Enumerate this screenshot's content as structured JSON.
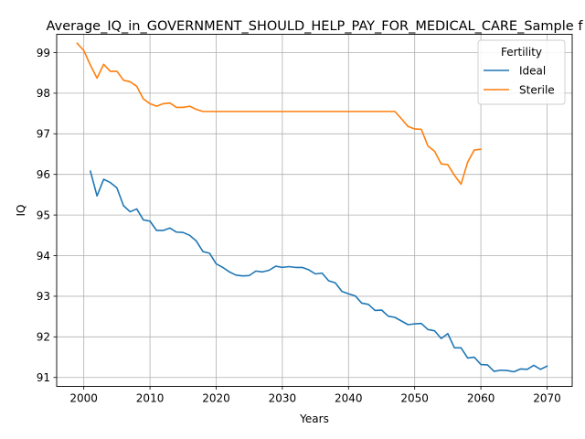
{
  "chart_data": {
    "type": "line",
    "title": "Average_IQ_in_GOVERNMENT_SHOULD_HELP_PAY_FOR_MEDICAL_CARE_Sample f",
    "xlabel": "Years",
    "ylabel": "IQ",
    "xlim": [
      1995.9,
      2073.8
    ],
    "ylim": [
      90.78,
      99.45
    ],
    "x_ticks": [
      2000,
      2010,
      2020,
      2030,
      2040,
      2050,
      2060,
      2070
    ],
    "y_ticks": [
      91,
      92,
      93,
      94,
      95,
      96,
      97,
      98,
      99
    ],
    "grid": true,
    "legend": {
      "title": "Fertility",
      "placement": "top-right"
    },
    "series": [
      {
        "name": "Ideal",
        "color": "#1f77b4",
        "x": [
          2001,
          2002,
          2003,
          2004,
          2005,
          2006,
          2007,
          2008,
          2009,
          2010,
          2011,
          2012,
          2013,
          2014,
          2015,
          2016,
          2017,
          2018,
          2019,
          2020,
          2021,
          2022,
          2023,
          2024,
          2025,
          2026,
          2027,
          2028,
          2029,
          2030,
          2031,
          2032,
          2033,
          2034,
          2035,
          2036,
          2037,
          2038,
          2039,
          2040,
          2041,
          2042,
          2043,
          2044,
          2045,
          2046,
          2047,
          2048,
          2049,
          2050,
          2051,
          2052,
          2053,
          2054,
          2055,
          2056,
          2057,
          2058,
          2059,
          2060,
          2061,
          2062,
          2063,
          2064,
          2065,
          2066,
          2067,
          2068,
          2069,
          2070
        ],
        "y": [
          96.08,
          95.47,
          95.88,
          95.8,
          95.67,
          95.23,
          95.08,
          95.15,
          94.88,
          94.85,
          94.62,
          94.62,
          94.68,
          94.58,
          94.57,
          94.5,
          94.36,
          94.1,
          94.06,
          93.8,
          93.71,
          93.6,
          93.52,
          93.5,
          93.51,
          93.62,
          93.6,
          93.64,
          93.74,
          93.71,
          93.73,
          93.71,
          93.71,
          93.65,
          93.55,
          93.57,
          93.38,
          93.33,
          93.12,
          93.06,
          93.01,
          92.83,
          92.8,
          92.65,
          92.66,
          92.51,
          92.48,
          92.39,
          92.3,
          92.32,
          92.33,
          92.18,
          92.15,
          91.96,
          92.08,
          91.73,
          91.73,
          91.48,
          91.5,
          91.32,
          91.31,
          91.15,
          91.18,
          91.17,
          91.14,
          91.21,
          91.2,
          91.3,
          91.2,
          91.28
        ]
      },
      {
        "name": "Sterile",
        "color": "#ff7f0e",
        "x": [
          1999,
          2000,
          2001,
          2002,
          2003,
          2004,
          2005,
          2006,
          2007,
          2008,
          2009,
          2010,
          2011,
          2012,
          2013,
          2014,
          2015,
          2016,
          2017,
          2018,
          2019,
          2020,
          2021,
          2022,
          2023,
          2024,
          2025,
          2026,
          2027,
          2028,
          2029,
          2030,
          2031,
          2032,
          2033,
          2034,
          2035,
          2036,
          2037,
          2038,
          2039,
          2040,
          2041,
          2042,
          2043,
          2044,
          2045,
          2046,
          2047,
          2048,
          2049,
          2050,
          2051,
          2052,
          2053,
          2054,
          2055,
          2056,
          2057,
          2058,
          2059,
          2060
        ],
        "y": [
          99.23,
          99.05,
          98.69,
          98.37,
          98.71,
          98.54,
          98.54,
          98.32,
          98.28,
          98.17,
          97.86,
          97.74,
          97.68,
          97.74,
          97.76,
          97.65,
          97.65,
          97.68,
          97.6,
          97.55,
          97.55,
          97.55,
          97.55,
          97.55,
          97.55,
          97.55,
          97.55,
          97.55,
          97.55,
          97.55,
          97.55,
          97.55,
          97.55,
          97.55,
          97.55,
          97.55,
          97.55,
          97.55,
          97.55,
          97.55,
          97.55,
          97.55,
          97.55,
          97.55,
          97.55,
          97.55,
          97.55,
          97.55,
          97.55,
          97.37,
          97.18,
          97.12,
          97.11,
          96.7,
          96.57,
          96.26,
          96.24,
          95.98,
          95.76,
          96.3,
          96.6,
          96.62
        ]
      }
    ]
  }
}
